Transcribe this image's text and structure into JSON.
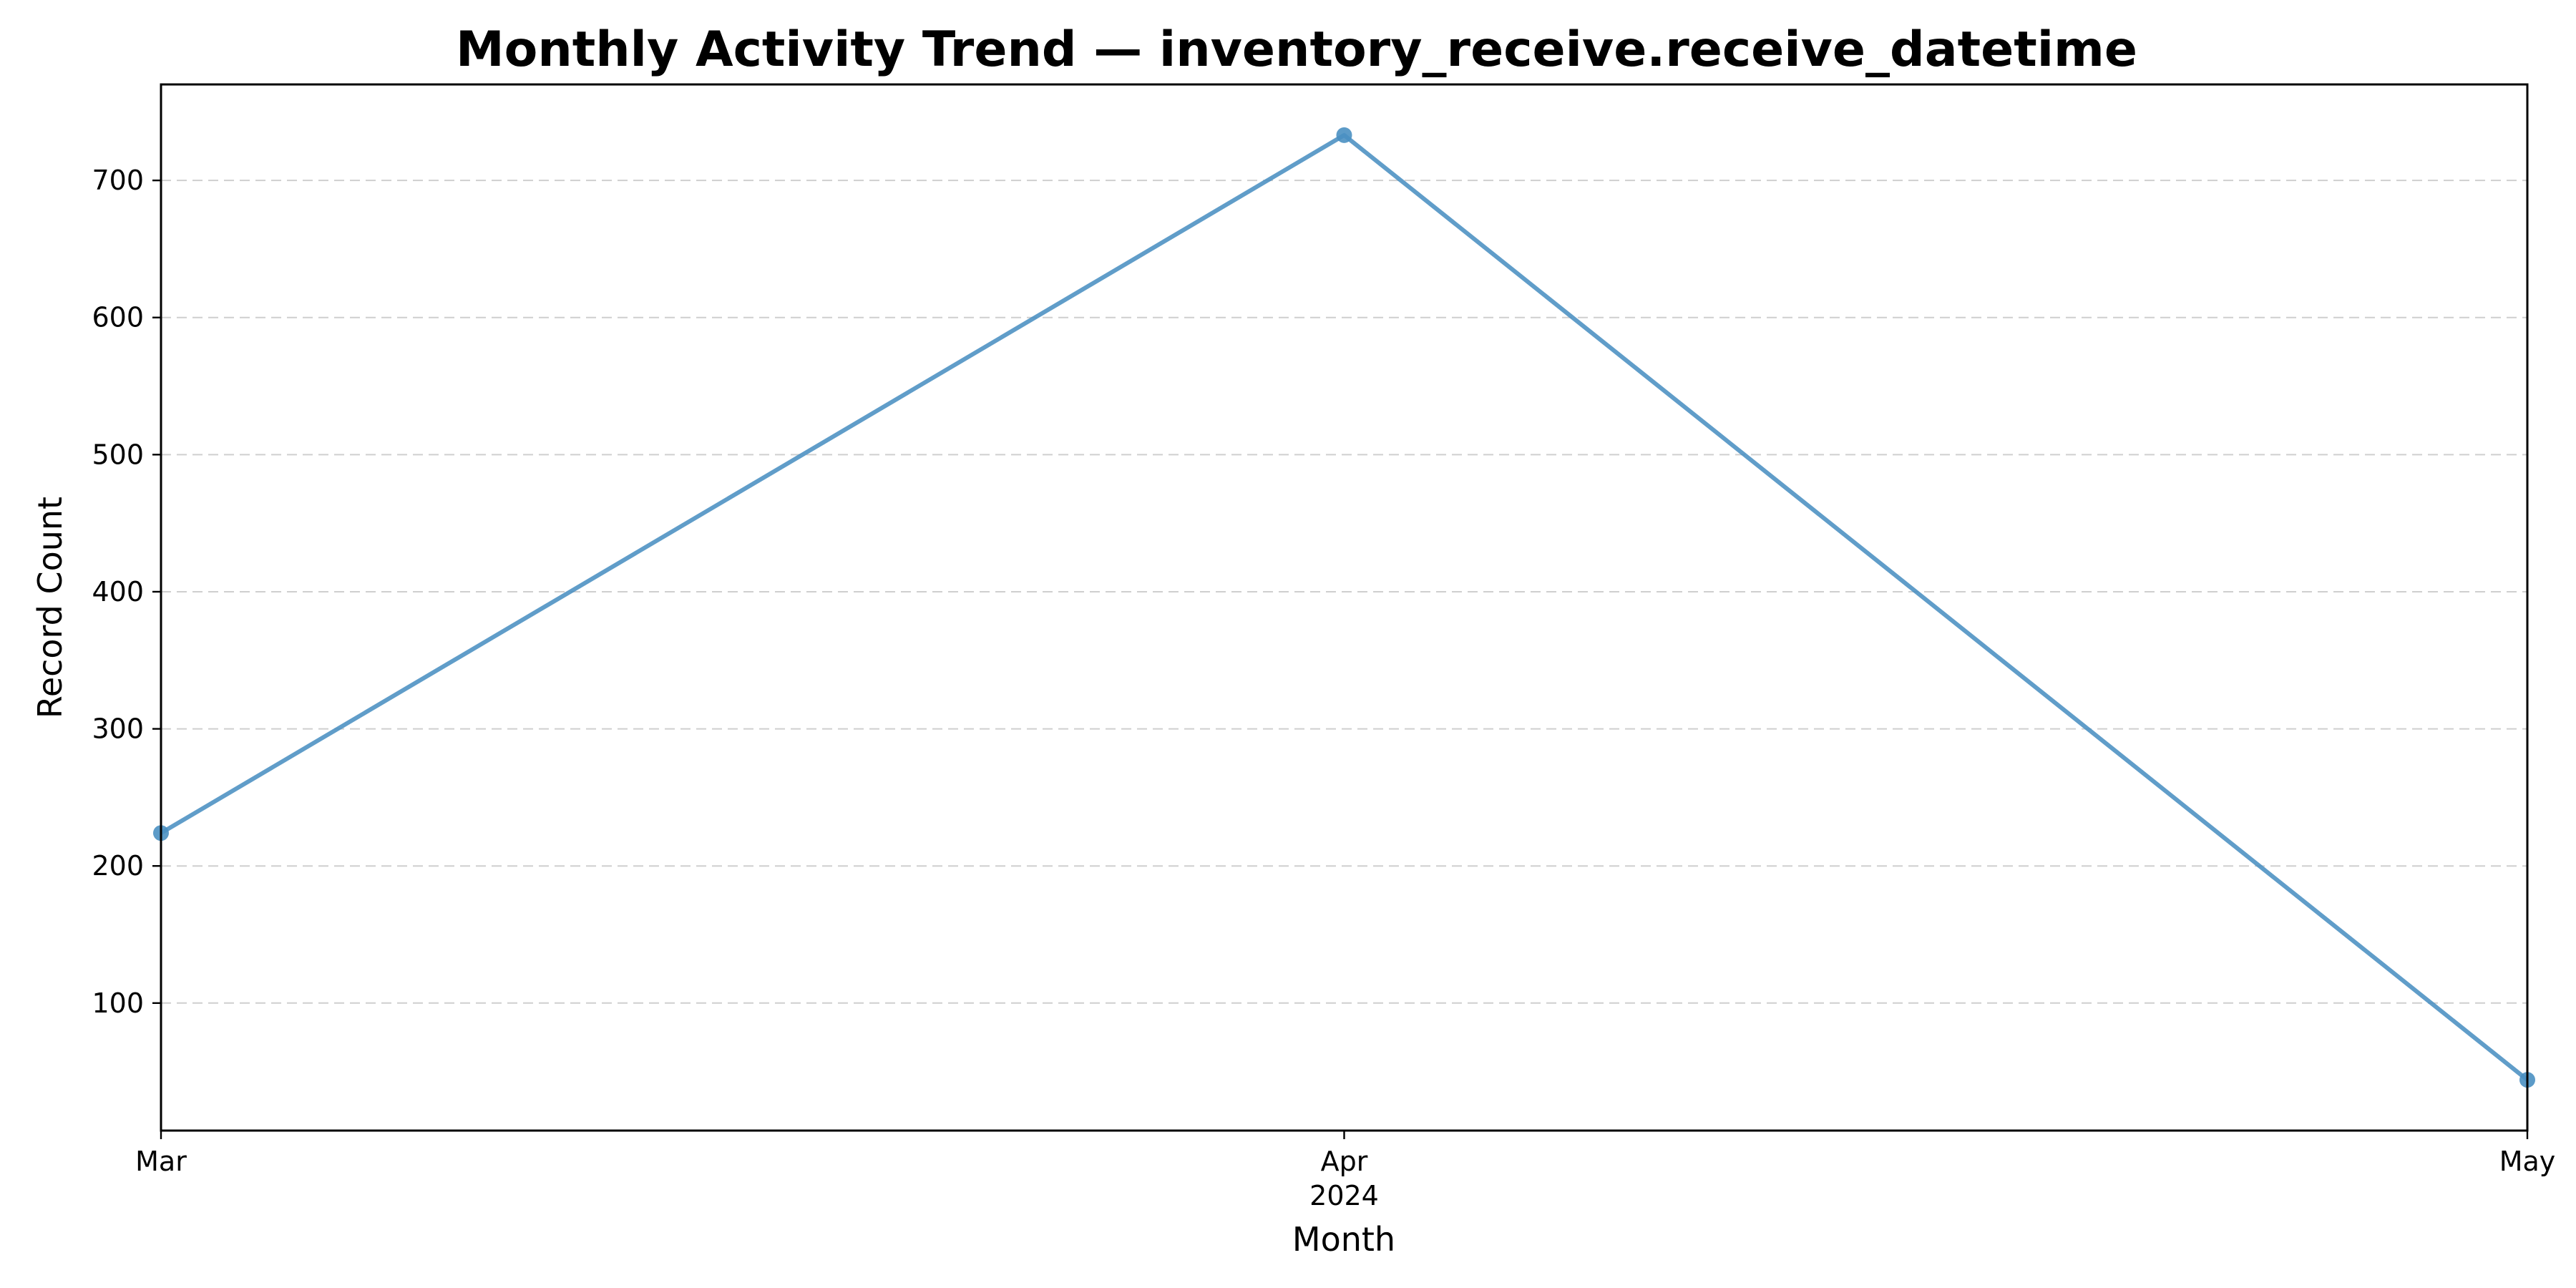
{
  "chart_data": {
    "type": "line",
    "title": "Monthly Activity Trend — inventory_receive.receive_datetime",
    "xlabel": "Month",
    "ylabel": "Record Count",
    "x_tick_labels": [
      "Mar",
      "Apr",
      "May"
    ],
    "x_year_label": "2024",
    "x": [
      "2024-03",
      "2024-04",
      "2024-05"
    ],
    "series": [
      {
        "values": [
          224,
          733,
          44
        ],
        "color": "#4a90c2"
      }
    ],
    "ylim": [
      7,
      770
    ],
    "y_ticks": [
      100,
      200,
      300,
      400,
      500,
      600,
      700
    ],
    "grid": "horizontal dashed",
    "legend": "none"
  }
}
